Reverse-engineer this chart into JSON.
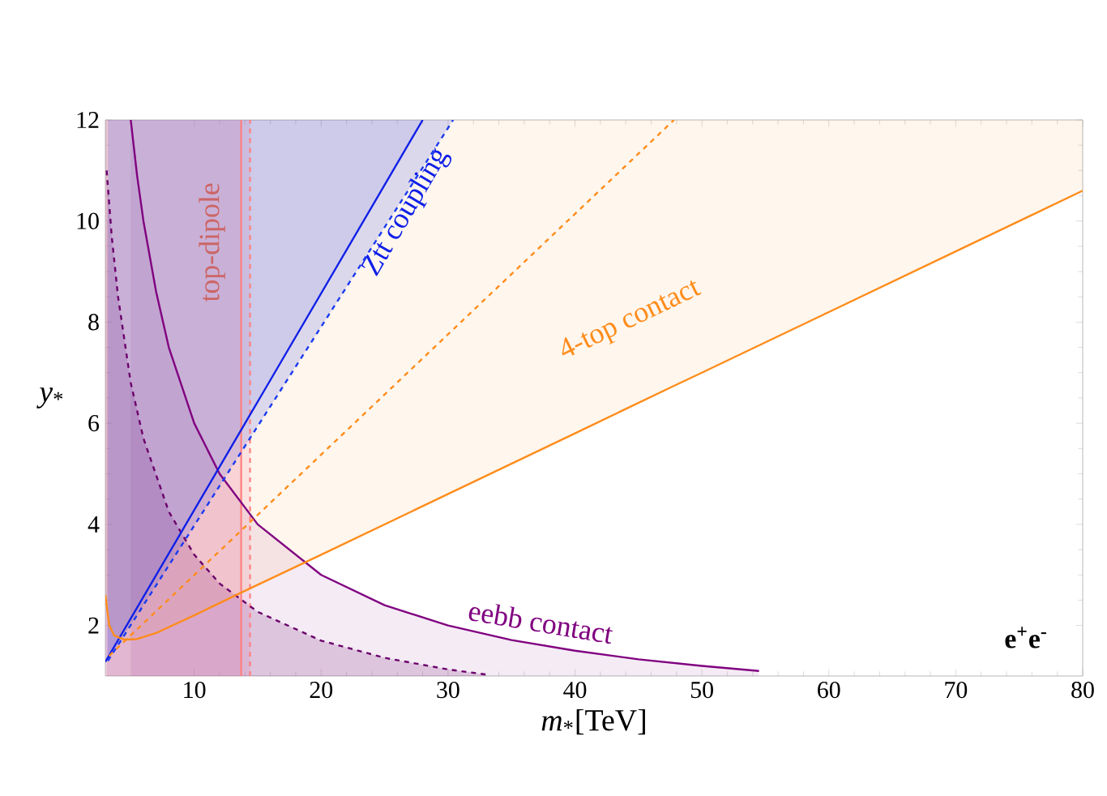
{
  "chart_data": {
    "type": "line",
    "xlabel": "*m*$_{*}$[TeV]",
    "ylabel": "*y*$_{*}$",
    "xlim": [
      3,
      80
    ],
    "ylim": [
      1,
      12
    ],
    "xticks": [
      10,
      20,
      30,
      40,
      50,
      60,
      70,
      80
    ],
    "yticks": [
      2,
      4,
      6,
      8,
      10,
      12
    ],
    "grid": false,
    "series": [
      {
        "name": "eebb contact",
        "color": "#800080",
        "line_style": "solid",
        "x": [
          5.0,
          5.5,
          6,
          7,
          8,
          10,
          12,
          15,
          20,
          25,
          30,
          35,
          40,
          45,
          50,
          54.5
        ],
        "values": [
          12,
          10.9,
          10,
          8.6,
          7.5,
          6,
          5,
          4,
          3,
          2.4,
          2,
          1.71,
          1.5,
          1.33,
          1.2,
          1.1
        ],
        "lower": [
          1,
          1,
          1,
          1,
          1,
          1,
          1,
          1,
          1,
          1,
          1,
          1,
          1,
          1,
          1,
          1
        ],
        "upper": [
          12,
          10.9,
          10,
          8.6,
          7.5,
          6,
          5,
          4,
          3,
          2.4,
          2,
          1.71,
          1.5,
          1.33,
          1.2,
          1.1
        ]
      },
      {
        "color": "#6b006b",
        "line_style": "dashed",
        "x": [
          3.1,
          3.5,
          4,
          5,
          6,
          8,
          10,
          12,
          15,
          20,
          25,
          30,
          33
        ],
        "values": [
          11,
          9.7,
          8.5,
          6.8,
          5.7,
          4.25,
          3.4,
          2.83,
          2.27,
          1.7,
          1.36,
          1.13,
          1.03
        ],
        "lower": [
          1,
          1,
          1,
          1,
          1,
          1,
          1,
          1,
          1,
          1,
          1,
          1,
          1
        ],
        "upper": [
          11,
          9.7,
          8.5,
          6.8,
          5.7,
          4.25,
          3.4,
          2.83,
          2.27,
          1.7,
          1.36,
          1.13,
          1.03
        ]
      },
      {
        "name": "Ztt coupling",
        "color": "#1020e8",
        "line_style": "solid",
        "x": [
          3.0,
          15.5,
          28
        ],
        "values": [
          1.28,
          6.64,
          12
        ],
        "lower": [
          1.28,
          6.64,
          12
        ],
        "upper": [
          12,
          12,
          12
        ]
      },
      {
        "color": "#1a3af0",
        "line_style": "dashed",
        "x": [
          3.2,
          16.8,
          30.4
        ],
        "values": [
          1.3,
          6.65,
          12
        ],
        "lower": [
          1.3,
          6.65,
          12
        ],
        "upper": [
          12,
          12,
          12
        ]
      },
      {
        "name": "4-top contact",
        "color": "#ff8c1a",
        "line_style": "solid",
        "x": [
          3.0,
          3.3,
          3.7,
          4.5,
          5.5,
          7,
          10,
          13.7,
          20,
          30,
          40,
          47.8,
          50,
          60,
          70,
          80
        ],
        "values": [
          2.6,
          2.0,
          1.8,
          1.72,
          1.73,
          1.85,
          2.2,
          2.65,
          3.4,
          4.6,
          5.8,
          6.74,
          7.0,
          8.2,
          9.4,
          10.6
        ],
        "lower": [
          2.6,
          2.0,
          1.8,
          1.72,
          1.73,
          1.85,
          2.2,
          2.65,
          3.4,
          4.6,
          5.8,
          6.74,
          7.0,
          8.2,
          9.4,
          10.6
        ],
        "upper": [
          12,
          12,
          12,
          12,
          12,
          12,
          12,
          12,
          12,
          12,
          12,
          12,
          12,
          12,
          12,
          12
        ]
      },
      {
        "color": "#ff8c1a",
        "line_style": "dashed",
        "x": [
          3.3,
          47.8
        ],
        "values": [
          1.4,
          12
        ]
      }
    ],
    "ref_lines": [
      {
        "axis": "x",
        "value": 13.7,
        "label": "top-dipole",
        "color": "#ff7f7f",
        "line_style": "solid"
      },
      {
        "axis": "x",
        "value": 14.4,
        "color": "#ff7f7f",
        "line_style": "dashed"
      }
    ],
    "bands": [
      {
        "axis": "x",
        "from": 3,
        "to": 13.7,
        "color": "#f090b0"
      },
      {
        "axis": "x",
        "from": 3,
        "to": 14.4,
        "color": "#f090b0"
      }
    ],
    "annotations": [
      "**e$^{+}$e$^{-}$**"
    ]
  }
}
